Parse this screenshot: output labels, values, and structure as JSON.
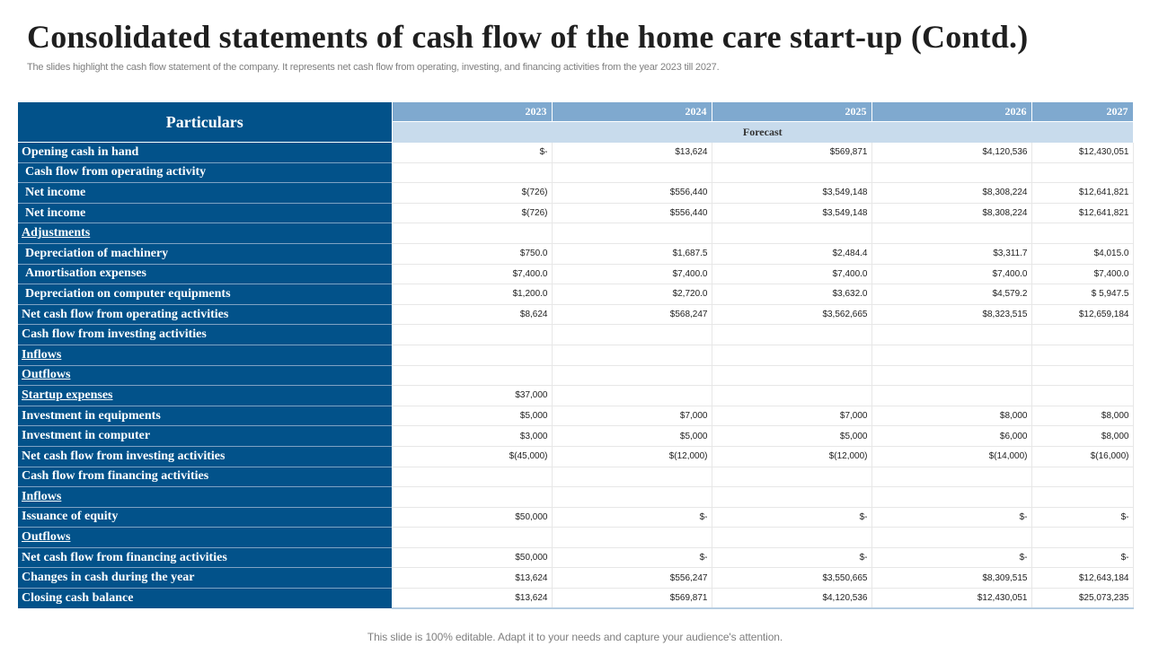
{
  "title": "Consolidated statements of cash flow of the home care start-up (Contd.)",
  "subtitle": "The slides highlight the cash flow statement of the company. It represents net cash flow from operating, investing, and financing activities from the year 2023 till 2027.",
  "footer": "This slide is 100% editable. Adapt it to your needs and capture your audience's attention.",
  "colors": {
    "header_blue": "#02528a",
    "year_blue": "#7fa9cf",
    "forecast_blue": "#c8dbec"
  },
  "table": {
    "particulars_header": "Particulars",
    "years": [
      "2023",
      "2024",
      "2025",
      "2026",
      "2027"
    ],
    "forecast_label": "Forecast",
    "rows": [
      {
        "label": "Opening cash in hand",
        "values": [
          "$-",
          "$13,624",
          "$569,871",
          "$4,120,536",
          "$12,430,051"
        ]
      },
      {
        "label": "Cash flow from operating activity",
        "values": [
          "",
          "",
          "",
          "",
          ""
        ]
      },
      {
        "label": "Net income",
        "values": [
          "$(726)",
          "$556,440",
          "$3,549,148",
          "$8,308,224",
          "$12,641,821"
        ]
      },
      {
        "label": "Net income",
        "values": [
          "$(726)",
          "$556,440",
          "$3,549,148",
          "$8,308,224",
          "$12,641,821"
        ]
      },
      {
        "label": "Adjustments",
        "values": [
          "",
          "",
          "",
          "",
          ""
        ]
      },
      {
        "label": "Depreciation of machinery",
        "values": [
          "$750.0",
          "$1,687.5",
          "$2,484.4",
          "$3,311.7",
          "$4,015.0"
        ]
      },
      {
        "label": "Amortisation expenses",
        "values": [
          "$7,400.0",
          "$7,400.0",
          "$7,400.0",
          "$7,400.0",
          "$7,400.0"
        ]
      },
      {
        "label": "Depreciation on computer equipments",
        "values": [
          "$1,200.0",
          "$2,720.0",
          "$3,632.0",
          "$4,579.2",
          "$ 5,947.5"
        ]
      },
      {
        "label": "Net cash flow from operating activities",
        "values": [
          "$8,624",
          "$568,247",
          "$3,562,665",
          "$8,323,515",
          "$12,659,184"
        ]
      },
      {
        "label": "Cash flow from investing activities",
        "values": [
          "",
          "",
          "",
          "",
          ""
        ]
      },
      {
        "label": "Inflows",
        "values": [
          "",
          "",
          "",
          "",
          ""
        ]
      },
      {
        "label": "Outflows",
        "values": [
          "",
          "",
          "",
          "",
          ""
        ]
      },
      {
        "label": "Startup expenses",
        "values": [
          "$37,000",
          "",
          "",
          "",
          ""
        ]
      },
      {
        "label": "Investment in equipments",
        "values": [
          "$5,000",
          "$7,000",
          "$7,000",
          "$8,000",
          "$8,000"
        ]
      },
      {
        "label": "Investment in computer",
        "values": [
          "$3,000",
          "$5,000",
          "$5,000",
          "$6,000",
          "$8,000"
        ]
      },
      {
        "label": "Net cash flow from investing activities",
        "values": [
          "$(45,000)",
          "$(12,000)",
          "$(12,000)",
          "$(14,000)",
          "$(16,000)"
        ]
      },
      {
        "label": "Cash flow from financing activities",
        "values": [
          "",
          "",
          "",
          "",
          ""
        ]
      },
      {
        "label": "Inflows",
        "values": [
          "",
          "",
          "",
          "",
          ""
        ]
      },
      {
        "label": "Issuance of equity",
        "values": [
          "$50,000",
          "$-",
          "$-",
          "$-",
          "$-"
        ]
      },
      {
        "label": "Outflows",
        "values": [
          "",
          "",
          "",
          "",
          ""
        ]
      },
      {
        "label": "Net cash flow from financing activities",
        "values": [
          "$50,000",
          "$-",
          "$-",
          "$-",
          "$-"
        ]
      },
      {
        "label": "Changes in cash during the year",
        "values": [
          "$13,624",
          "$556,247",
          "$3,550,665",
          "$8,309,515",
          "$12,643,184"
        ]
      },
      {
        "label": "Closing cash balance",
        "values": [
          "$13,624",
          "$569,871",
          "$4,120,536",
          "$12,430,051",
          "$25,073,235"
        ]
      }
    ]
  }
}
